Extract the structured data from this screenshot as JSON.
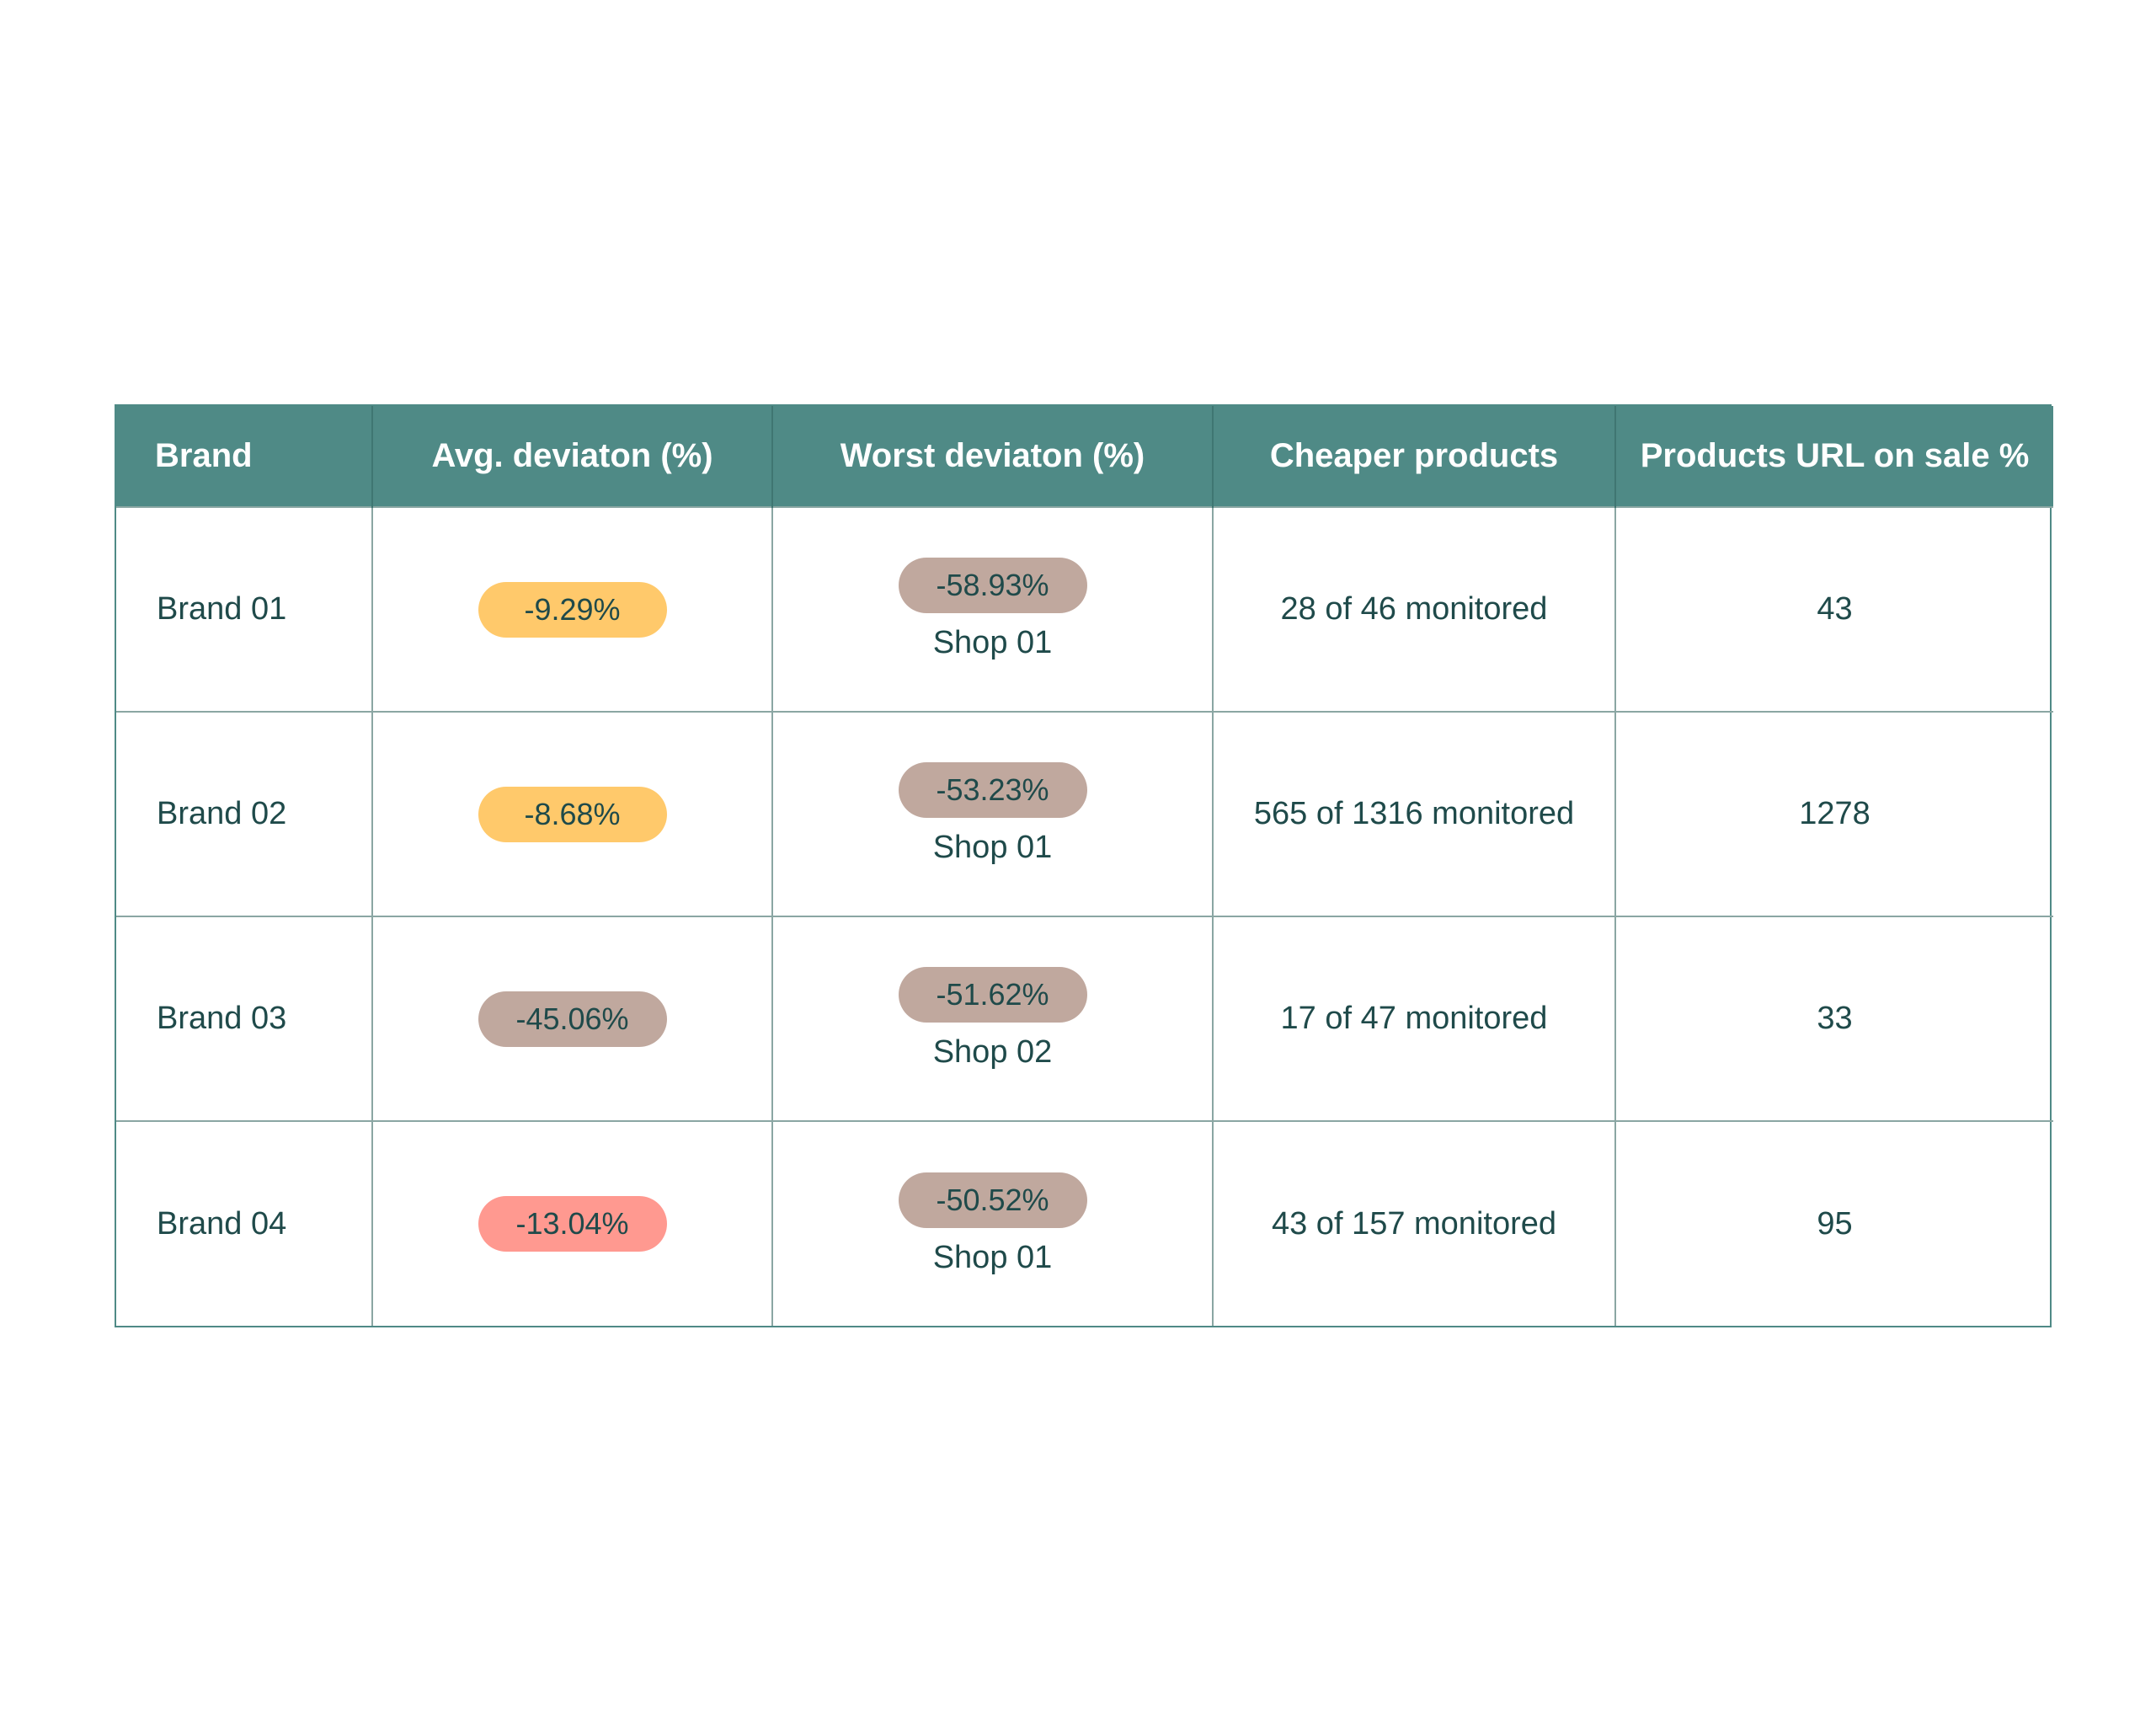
{
  "table": {
    "headers": {
      "brand": "Brand",
      "avg": "Avg. deviaton (%)",
      "worst": "Worst deviaton (%)",
      "cheaper": "Cheaper products",
      "url": "Products URL on sale %"
    },
    "colors": {
      "header_bg": "#4f8a86",
      "pill_yellow": "#ffc96b",
      "pill_taupe": "#c0a89e",
      "pill_red": "#ff9990"
    },
    "rows": [
      {
        "brand": "Brand 01",
        "avg": "-9.29%",
        "avg_color": "#ffc96b",
        "worst": "-58.93%",
        "worst_color": "#c0a89e",
        "shop": "Shop 01",
        "cheaper": "28 of 46 monitored",
        "url": "43"
      },
      {
        "brand": "Brand 02",
        "avg": "-8.68%",
        "avg_color": "#ffc96b",
        "worst": "-53.23%",
        "worst_color": "#c0a89e",
        "shop": "Shop 01",
        "cheaper": "565 of 1316 monitored",
        "url": "1278"
      },
      {
        "brand": "Brand 03",
        "avg": "-45.06%",
        "avg_color": "#c0a89e",
        "worst": "-51.62%",
        "worst_color": "#c0a89e",
        "shop": "Shop 02",
        "cheaper": "17 of 47 monitored",
        "url": "33"
      },
      {
        "brand": "Brand 04",
        "avg": "-13.04%",
        "avg_color": "#ff9990",
        "worst": "-50.52%",
        "worst_color": "#c0a89e",
        "shop": "Shop 01",
        "cheaper": "43 of 157 monitored",
        "url": "95"
      }
    ]
  }
}
